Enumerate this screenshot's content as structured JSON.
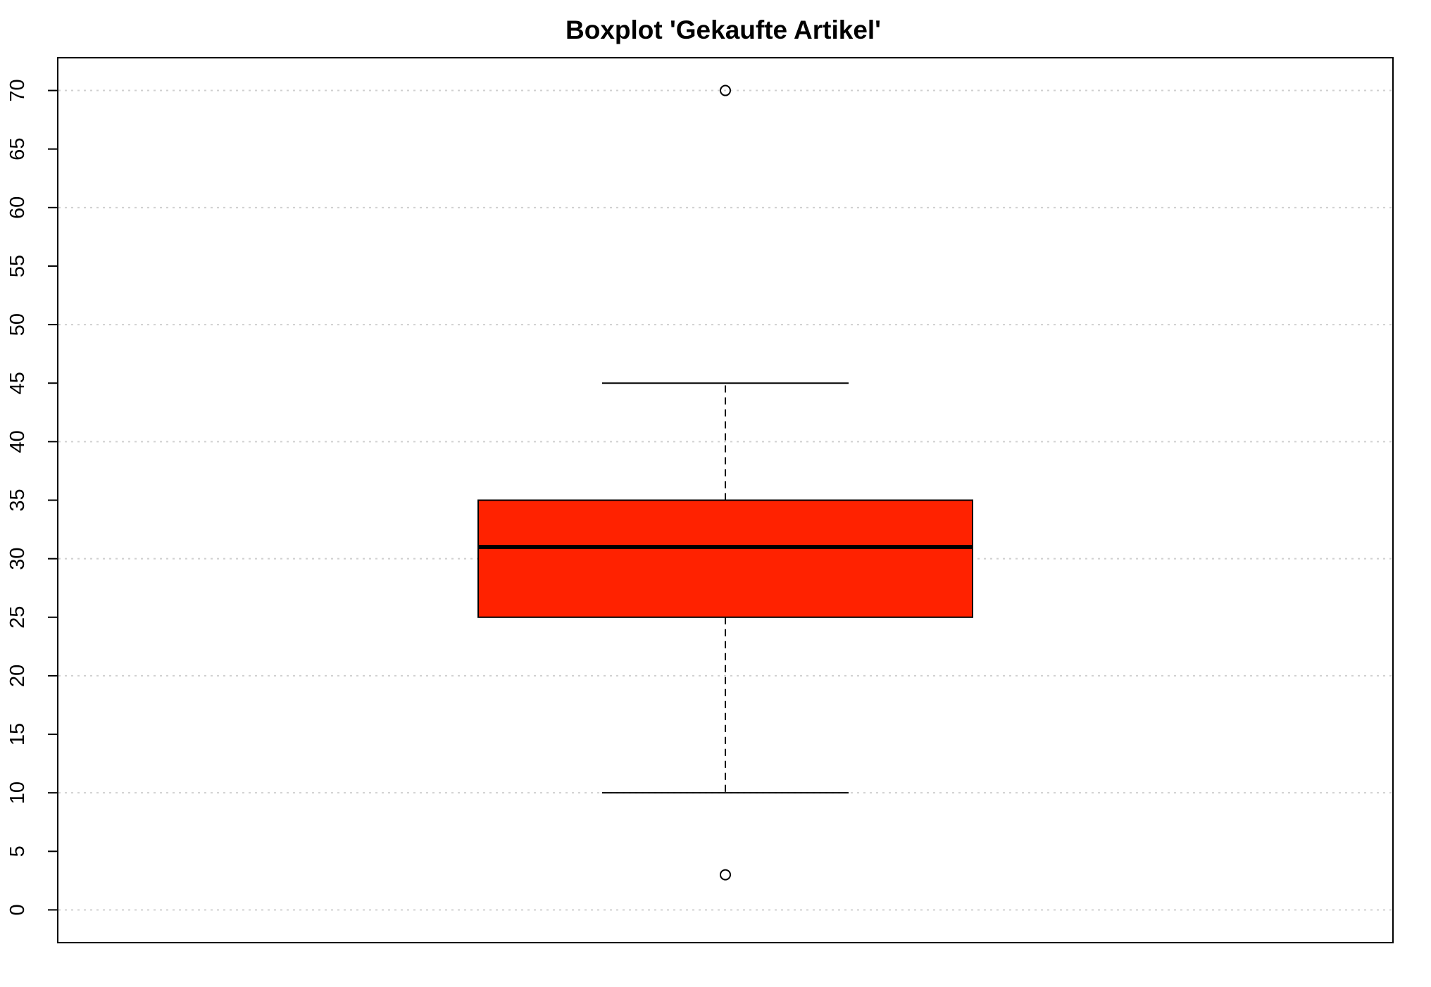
{
  "chart_data": {
    "type": "boxplot",
    "title": "Boxplot 'Gekaufte Artikel'",
    "xlabel": "",
    "ylabel": "",
    "ylim": [
      -2.8,
      72.8
    ],
    "yticks": [
      0,
      5,
      10,
      15,
      20,
      25,
      30,
      35,
      40,
      45,
      50,
      55,
      60,
      65,
      70
    ],
    "ytick_labels": [
      "0",
      "5",
      "10",
      "15",
      "20",
      "25",
      "30",
      "35",
      "40",
      "45",
      "50",
      "55",
      "60",
      "65",
      "70"
    ],
    "gridlines_y": [
      0,
      10,
      20,
      30,
      40,
      50,
      60,
      70
    ],
    "grid": true,
    "box": {
      "lower_whisker": 10,
      "q1": 25,
      "median": 31,
      "q3": 35,
      "upper_whisker": 45,
      "outliers": [
        70,
        3
      ]
    },
    "colors": {
      "box_fill": "#ff2200",
      "grid": "#d0d0d0",
      "stroke": "#000000"
    }
  }
}
